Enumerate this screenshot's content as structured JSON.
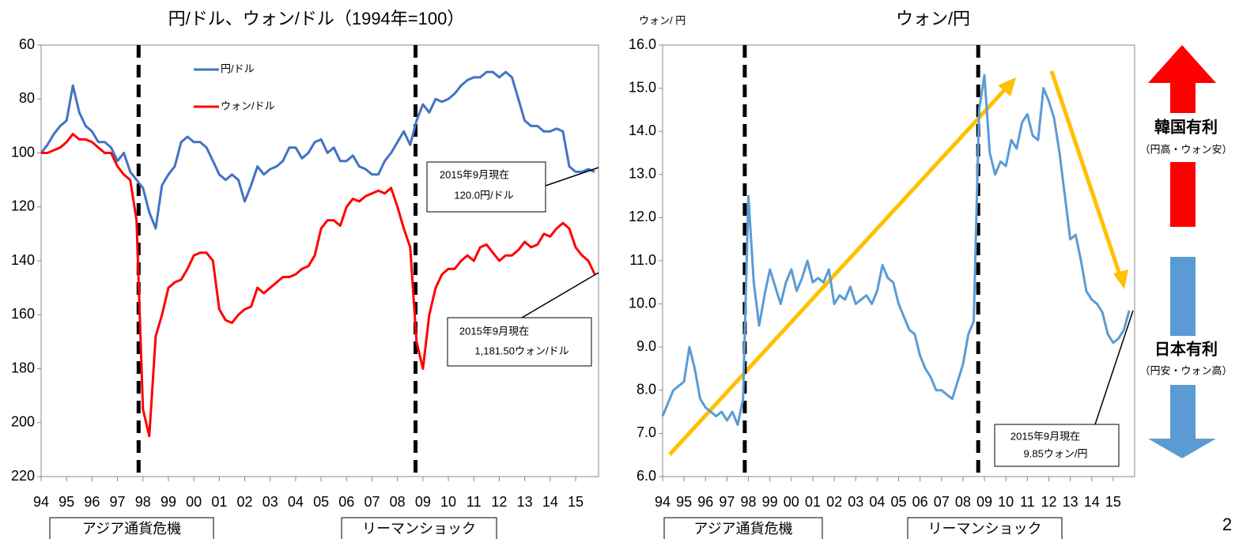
{
  "chart_data": [
    {
      "type": "line",
      "title": "円/ドル、ウォン/ドル（1994年=100）",
      "x": [
        1994,
        1994.25,
        1994.5,
        1994.75,
        1995,
        1995.25,
        1995.5,
        1995.75,
        1996,
        1996.25,
        1996.5,
        1996.75,
        1997,
        1997.25,
        1997.5,
        1997.75,
        1998,
        1998.25,
        1998.5,
        1998.75,
        1999,
        1999.25,
        1999.5,
        1999.75,
        2000,
        2000.25,
        2000.5,
        2000.75,
        2001,
        2001.25,
        2001.5,
        2001.75,
        2002,
        2002.25,
        2002.5,
        2002.75,
        2003,
        2003.25,
        2003.5,
        2003.75,
        2004,
        2004.25,
        2004.5,
        2004.75,
        2005,
        2005.25,
        2005.5,
        2005.75,
        2006,
        2006.25,
        2006.5,
        2006.75,
        2007,
        2007.25,
        2007.5,
        2007.75,
        2008,
        2008.25,
        2008.5,
        2008.75,
        2009,
        2009.25,
        2009.5,
        2009.75,
        2010,
        2010.25,
        2010.5,
        2010.75,
        2011,
        2011.25,
        2011.5,
        2011.75,
        2012,
        2012.25,
        2012.5,
        2012.75,
        2013,
        2013.25,
        2013.5,
        2013.75,
        2014,
        2014.25,
        2014.5,
        2014.75,
        2015,
        2015.25,
        2015.5,
        2015.75
      ],
      "series": [
        {
          "name": "円/ドル",
          "color": "#4472c4",
          "values": [
            100,
            97,
            93,
            90,
            88,
            75,
            85,
            90,
            92,
            96,
            96,
            98,
            103,
            100,
            107,
            110,
            113,
            122,
            128,
            112,
            108,
            105,
            96,
            94,
            96,
            96,
            98,
            103,
            108,
            110,
            108,
            110,
            118,
            112,
            105,
            108,
            106,
            105,
            103,
            98,
            98,
            102,
            100,
            96,
            95,
            100,
            98,
            103,
            103,
            101,
            105,
            106,
            108,
            108,
            103,
            100,
            96,
            92,
            97,
            88,
            82,
            85,
            80,
            81,
            80,
            78,
            75,
            73,
            72,
            72,
            70,
            70,
            72,
            70,
            72,
            80,
            88,
            90,
            90,
            92,
            92,
            91,
            92,
            105,
            107,
            107,
            106,
            107
          ]
        },
        {
          "name": "ウォン/ドル",
          "color": "#ff0000",
          "values": [
            100,
            100,
            99,
            98,
            96,
            93,
            95,
            95,
            96,
            98,
            100,
            100,
            105,
            108,
            110,
            125,
            195,
            205,
            168,
            160,
            150,
            148,
            147,
            143,
            138,
            137,
            137,
            140,
            158,
            162,
            163,
            160,
            158,
            157,
            150,
            152,
            150,
            148,
            146,
            146,
            145,
            143,
            142,
            138,
            128,
            125,
            125,
            127,
            120,
            117,
            118,
            116,
            115,
            114,
            115,
            113,
            120,
            128,
            135,
            170,
            180,
            160,
            150,
            145,
            143,
            143,
            140,
            138,
            140,
            135,
            134,
            137,
            140,
            138,
            138,
            136,
            133,
            135,
            134,
            130,
            131,
            128,
            126,
            128,
            135,
            138,
            140,
            145
          ]
        }
      ],
      "xlim": [
        1994,
        2015.9
      ],
      "xticks": [
        {
          "value": 1994,
          "label": "94"
        },
        {
          "value": 1995,
          "label": "95"
        },
        {
          "value": 1996,
          "label": "96"
        },
        {
          "value": 1997,
          "label": "97"
        },
        {
          "value": 1998,
          "label": "98"
        },
        {
          "value": 1999,
          "label": "99"
        },
        {
          "value": 2000,
          "label": "00"
        },
        {
          "value": 2001,
          "label": "01"
        },
        {
          "value": 2002,
          "label": "02"
        },
        {
          "value": 2003,
          "label": "03"
        },
        {
          "value": 2004,
          "label": "04"
        },
        {
          "value": 2005,
          "label": "05"
        },
        {
          "value": 2006,
          "label": "06"
        },
        {
          "value": 2007,
          "label": "07"
        },
        {
          "value": 2008,
          "label": "08"
        },
        {
          "value": 2009,
          "label": "09"
        },
        {
          "value": 2010,
          "label": "10"
        },
        {
          "value": 2011,
          "label": "11"
        },
        {
          "value": 2012,
          "label": "12"
        },
        {
          "value": 2013,
          "label": "13"
        },
        {
          "value": 2014,
          "label": "14"
        },
        {
          "value": 2015,
          "label": "15"
        }
      ],
      "ylim": [
        60,
        220
      ],
      "y_inverted": true,
      "yticks": [
        60,
        80,
        100,
        120,
        140,
        160,
        180,
        200,
        220
      ],
      "events": [
        {
          "label": "アジア通貨危機",
          "x": 1997.83
        },
        {
          "label": "リーマンショック",
          "x": 2008.71
        }
      ],
      "annotations": [
        [
          "2015年9月現在",
          "120.0円/ドル"
        ],
        [
          "2015年9月現在",
          "1,181.50ウォン/ドル"
        ]
      ]
    },
    {
      "type": "line",
      "title": "ウォン/円",
      "y_label": "ウォン/ 円",
      "x": [
        1994,
        1994.25,
        1994.5,
        1994.75,
        1995,
        1995.25,
        1995.5,
        1995.75,
        1996,
        1996.25,
        1996.5,
        1996.75,
        1997,
        1997.25,
        1997.5,
        1997.75,
        1998,
        1998.25,
        1998.5,
        1998.75,
        1999,
        1999.25,
        1999.5,
        1999.75,
        2000,
        2000.25,
        2000.5,
        2000.75,
        2001,
        2001.25,
        2001.5,
        2001.75,
        2002,
        2002.25,
        2002.5,
        2002.75,
        2003,
        2003.25,
        2003.5,
        2003.75,
        2004,
        2004.25,
        2004.5,
        2004.75,
        2005,
        2005.25,
        2005.5,
        2005.75,
        2006,
        2006.25,
        2006.5,
        2006.75,
        2007,
        2007.25,
        2007.5,
        2007.75,
        2008,
        2008.25,
        2008.5,
        2008.75,
        2009,
        2009.25,
        2009.5,
        2009.75,
        2010,
        2010.25,
        2010.5,
        2010.75,
        2011,
        2011.25,
        2011.5,
        2011.75,
        2012,
        2012.25,
        2012.5,
        2012.75,
        2013,
        2013.25,
        2013.5,
        2013.75,
        2014,
        2014.25,
        2014.5,
        2014.75,
        2015,
        2015.25,
        2015.5,
        2015.75
      ],
      "series": [
        {
          "name": "ウォン/円",
          "color": "#5b9bd5",
          "values": [
            7.4,
            7.7,
            8.0,
            8.1,
            8.2,
            9.0,
            8.5,
            7.8,
            7.6,
            7.5,
            7.4,
            7.5,
            7.3,
            7.5,
            7.2,
            7.8,
            12.5,
            10.5,
            9.5,
            10.2,
            10.8,
            10.4,
            10.0,
            10.5,
            10.8,
            10.3,
            10.6,
            11.0,
            10.5,
            10.6,
            10.5,
            10.8,
            10.0,
            10.2,
            10.1,
            10.4,
            10.0,
            10.1,
            10.2,
            10.0,
            10.3,
            10.9,
            10.6,
            10.5,
            10.0,
            9.7,
            9.4,
            9.3,
            8.8,
            8.5,
            8.3,
            8.0,
            8.0,
            7.9,
            7.8,
            8.2,
            8.6,
            9.3,
            9.6,
            14.5,
            15.3,
            13.5,
            13.0,
            13.3,
            13.2,
            13.8,
            13.6,
            14.2,
            14.4,
            13.9,
            13.8,
            15.0,
            14.7,
            14.3,
            13.5,
            12.5,
            11.5,
            11.6,
            11.0,
            10.3,
            10.1,
            10.0,
            9.8,
            9.3,
            9.1,
            9.2,
            9.4,
            9.85
          ]
        }
      ],
      "xlim": [
        1994,
        2016
      ],
      "xticks": [
        {
          "value": 1994,
          "label": "94"
        },
        {
          "value": 1995,
          "label": "95"
        },
        {
          "value": 1996,
          "label": "96"
        },
        {
          "value": 1997,
          "label": "97"
        },
        {
          "value": 1998,
          "label": "98"
        },
        {
          "value": 1999,
          "label": "99"
        },
        {
          "value": 2000,
          "label": "00"
        },
        {
          "value": 2001,
          "label": "01"
        },
        {
          "value": 2002,
          "label": "02"
        },
        {
          "value": 2003,
          "label": "03"
        },
        {
          "value": 2004,
          "label": "04"
        },
        {
          "value": 2005,
          "label": "05"
        },
        {
          "value": 2006,
          "label": "06"
        },
        {
          "value": 2007,
          "label": "07"
        },
        {
          "value": 2008,
          "label": "08"
        },
        {
          "value": 2009,
          "label": "09"
        },
        {
          "value": 2010,
          "label": "10"
        },
        {
          "value": 2011,
          "label": "11"
        },
        {
          "value": 2012,
          "label": "12"
        },
        {
          "value": 2013,
          "label": "13"
        },
        {
          "value": 2014,
          "label": "14"
        },
        {
          "value": 2015,
          "label": "15"
        }
      ],
      "ylim": [
        6,
        16
      ],
      "yticks": [
        {
          "value": 6,
          "label": "6.0"
        },
        {
          "value": 7,
          "label": "7.0"
        },
        {
          "value": 8,
          "label": "8.0"
        },
        {
          "value": 9,
          "label": "9.0"
        },
        {
          "value": 10,
          "label": "10.0"
        },
        {
          "value": 11,
          "label": "11.0"
        },
        {
          "value": 12,
          "label": "12.0"
        },
        {
          "value": 13,
          "label": "13.0"
        },
        {
          "value": 14,
          "label": "14.0"
        },
        {
          "value": 15,
          "label": "15.0"
        },
        {
          "value": 16,
          "label": "16.0"
        }
      ],
      "events": [
        {
          "label": "アジア通貨危機",
          "x": 1997.83
        },
        {
          "label": "リーマンショック",
          "x": 2008.71
        }
      ],
      "annotations": [
        [
          "2015年9月現在",
          "9.85ウォン/円"
        ]
      ]
    }
  ],
  "side_panel": {
    "upper": "韓国有利",
    "upper_note": "（円高・ウォン安）",
    "lower": "日本有利",
    "lower_note": "（円安・ウォン高）"
  },
  "page_number": "2"
}
